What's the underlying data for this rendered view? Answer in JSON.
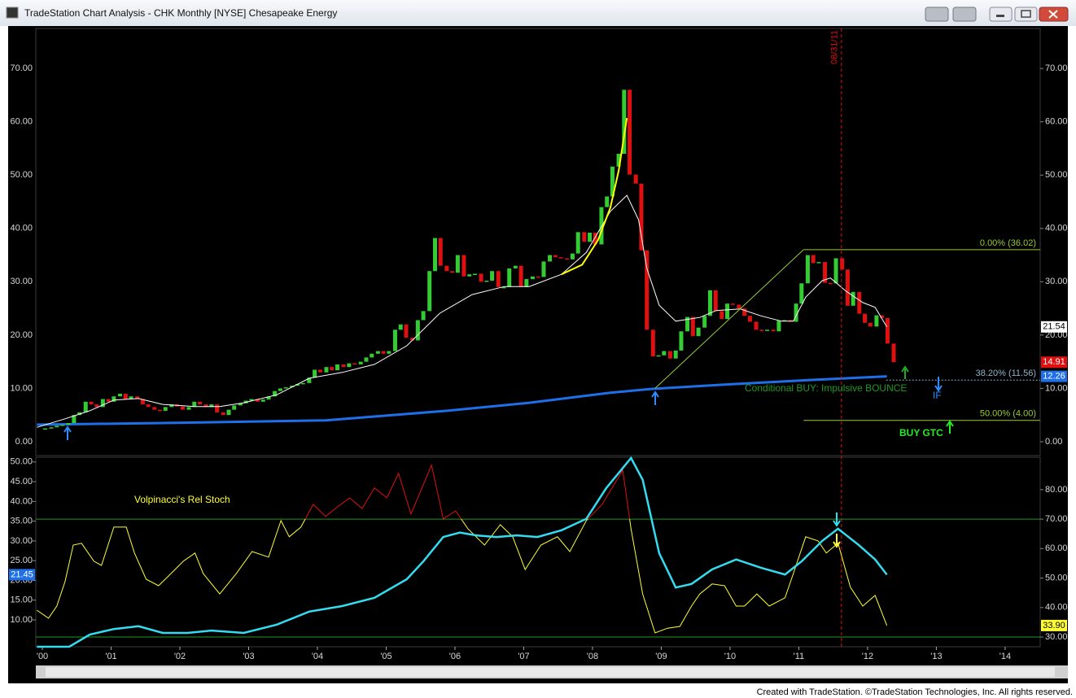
{
  "window": {
    "title": "TradeStation Chart Analysis - CHK Monthly [NYSE] Chesapeake Energy",
    "footer": "Created with TradeStation. ©TradeStation Technologies, Inc. All rights reserved."
  },
  "chart_data": [
    {
      "type": "candlestick",
      "up_color": "#33cc33",
      "down_color": "#e01010",
      "xlim": [
        1999.905,
        2014.51
      ],
      "ylim": [
        -2.6,
        77.5
      ],
      "yticks": [
        {
          "value": 0,
          "label": "0.00"
        },
        {
          "value": 10,
          "label": "10.00"
        },
        {
          "value": 20,
          "label": "20.00"
        },
        {
          "value": 30,
          "label": "30.00"
        },
        {
          "value": 40,
          "label": "40.00"
        },
        {
          "value": 50,
          "label": "50.00"
        },
        {
          "value": 60,
          "label": "60.00"
        },
        {
          "value": 70,
          "label": "70.00"
        }
      ],
      "x": [
        2000.04,
        2000.13,
        2000.21,
        2000.29,
        2000.38,
        2000.46,
        2000.54,
        2000.63,
        2000.71,
        2000.79,
        2000.88,
        2000.96,
        2001.04,
        2001.13,
        2001.21,
        2001.29,
        2001.38,
        2001.46,
        2001.54,
        2001.63,
        2001.71,
        2001.79,
        2001.88,
        2001.96,
        2002.04,
        2002.13,
        2002.21,
        2002.29,
        2002.38,
        2002.46,
        2002.54,
        2002.63,
        2002.71,
        2002.79,
        2002.88,
        2002.96,
        2003.04,
        2003.13,
        2003.21,
        2003.29,
        2003.38,
        2003.46,
        2003.54,
        2003.63,
        2003.71,
        2003.79,
        2003.88,
        2003.96,
        2004.04,
        2004.13,
        2004.21,
        2004.29,
        2004.38,
        2004.46,
        2004.54,
        2004.63,
        2004.71,
        2004.79,
        2004.88,
        2004.96,
        2005.04,
        2005.13,
        2005.21,
        2005.29,
        2005.38,
        2005.46,
        2005.54,
        2005.63,
        2005.71,
        2005.79,
        2005.88,
        2005.96,
        2006.04,
        2006.13,
        2006.21,
        2006.29,
        2006.38,
        2006.46,
        2006.54,
        2006.63,
        2006.71,
        2006.79,
        2006.88,
        2006.96,
        2007.04,
        2007.13,
        2007.21,
        2007.29,
        2007.38,
        2007.46,
        2007.54,
        2007.63,
        2007.71,
        2007.79,
        2007.88,
        2007.96,
        2008.04,
        2008.13,
        2008.21,
        2008.29,
        2008.38,
        2008.46,
        2008.54,
        2008.63,
        2008.71,
        2008.79,
        2008.88,
        2008.96,
        2009.04,
        2009.13,
        2009.21,
        2009.29,
        2009.38,
        2009.46,
        2009.54,
        2009.63,
        2009.71,
        2009.79,
        2009.88,
        2009.96,
        2010.04,
        2010.13,
        2010.21,
        2010.29,
        2010.38,
        2010.46,
        2010.54,
        2010.63,
        2010.71,
        2010.79,
        2010.88,
        2010.96,
        2011.04,
        2011.13,
        2011.21,
        2011.29,
        2011.38,
        2011.46,
        2011.54,
        2011.63,
        2011.71,
        2011.79,
        2011.88,
        2011.96,
        2012.04,
        2012.13,
        2012.21,
        2012.29,
        2012.38
      ],
      "close": [
        2.5,
        2.7,
        3.0,
        3.2,
        3.5,
        5.0,
        5.5,
        7.5,
        7.0,
        6.5,
        8.0,
        7.5,
        8.5,
        9.0,
        8.0,
        8.5,
        8.0,
        7.0,
        6.5,
        6.0,
        5.8,
        6.5,
        7.0,
        6.6,
        6.0,
        6.5,
        7.5,
        7.0,
        6.5,
        7.0,
        5.5,
        5.0,
        6.0,
        6.8,
        7.2,
        7.7,
        8.0,
        7.5,
        7.9,
        8.5,
        9.5,
        10.0,
        10.2,
        10.5,
        10.8,
        11.0,
        12.0,
        13.5,
        13.0,
        14.0,
        13.4,
        14.5,
        14.0,
        14.7,
        14.5,
        15.0,
        15.8,
        16.5,
        17.0,
        16.5,
        17.0,
        21.0,
        22.0,
        19.5,
        19.0,
        22.8,
        24.5,
        32.0,
        38.2,
        33.0,
        32.0,
        31.7,
        35.0,
        31.0,
        31.4,
        31.5,
        30.0,
        30.2,
        32.0,
        29.0,
        29.0,
        32.5,
        33.0,
        29.0,
        30.5,
        31.0,
        30.9,
        33.8,
        35.0,
        34.6,
        34.4,
        34.2,
        35.3,
        39.3,
        37.5,
        39.2,
        37.0,
        44.0,
        46.0,
        51.6,
        54.0,
        66.0,
        50.1,
        48.4,
        35.9,
        21.0,
        16.0,
        16.2,
        17.0,
        15.6,
        17.1,
        20.7,
        23.4,
        19.8,
        21.4,
        23.6,
        28.4,
        24.5,
        23.0,
        25.9,
        25.7,
        25.0,
        23.6,
        22.5,
        21.0,
        20.9,
        21.0,
        20.7,
        22.7,
        22.8,
        22.5,
        25.9,
        29.7,
        35.0,
        33.5,
        33.7,
        29.8,
        29.7,
        34.4,
        32.3,
        25.5,
        28.1,
        24.0,
        22.3,
        21.6,
        23.7,
        23.2,
        18.4,
        14.91
      ],
      "series": [
        {
          "color": "#ffffff",
          "width": 1,
          "x": [
            1999.92,
            2000.33,
            2000.69,
            2001.04,
            2001.4,
            2001.75,
            2002.22,
            2002.58,
            2002.93,
            2003.41,
            2003.88,
            2004.36,
            2004.83,
            2005.3,
            2005.78,
            2006.25,
            2006.72,
            2007.08,
            2007.55,
            2007.91,
            2008.26,
            2008.5,
            2008.67,
            2008.79,
            2008.97,
            2009.21,
            2009.56,
            2009.8,
            2010.15,
            2010.45,
            2010.75,
            2010.92,
            2011.1,
            2011.34,
            2011.46,
            2011.69,
            2011.93,
            2012.11,
            2012.28
          ],
          "values": [
            2.7,
            4.3,
            5.8,
            7.8,
            8.1,
            7.0,
            6.6,
            6.6,
            7.3,
            8.8,
            11.9,
            13.0,
            14.5,
            18.0,
            24.1,
            27.6,
            29.1,
            29.1,
            31.4,
            35.5,
            43.2,
            46.2,
            41.6,
            32.5,
            25.6,
            22.6,
            23.3,
            24.6,
            24.9,
            23.6,
            22.6,
            22.6,
            27.1,
            30.2,
            30.7,
            28.2,
            26.1,
            25.2,
            21.54
          ]
        },
        {
          "color": "#1e6fe8",
          "width": 3,
          "x": [
            1999.92,
            2001.75,
            2004.12,
            2005.89,
            2007.08,
            2008.26,
            2008.85,
            2010.03,
            2011.22,
            2012.28
          ],
          "values": [
            3.2,
            3.5,
            4.0,
            5.8,
            7.3,
            9.2,
            9.9,
            10.8,
            11.6,
            12.26
          ]
        },
        {
          "color": "#ffff00",
          "width": 2,
          "x": [
            2007.55,
            2007.85,
            2008.08,
            2008.26,
            2008.38,
            2008.5
          ],
          "values": [
            31.4,
            33.2,
            37.8,
            43.9,
            50.8,
            60.7
          ]
        }
      ],
      "trend_line": {
        "color": "#99cc33",
        "x": [
          2008.91,
          2011.07
        ],
        "values": [
          10,
          36.02
        ]
      },
      "fib_levels": [
        {
          "value": 36.02,
          "label": "0.00% (36.02)",
          "x": 2011.07,
          "color": "#99cc33"
        },
        {
          "value": 11.56,
          "label": "38.20% (11.56)",
          "x": 2012.27,
          "color": "#8fb3c8",
          "style": "dotted"
        },
        {
          "value": 4.0,
          "label": "50.00% (4.00)",
          "x": 2011.07,
          "color": "#99cc33"
        }
      ],
      "annotations": [
        "Conditional BUY: Impulsive BOUNCE",
        "BUY GTC",
        "IF"
      ],
      "vline": {
        "x": 2011.62,
        "label": "08/31/11",
        "color": "#e01010"
      }
    },
    {
      "type": "line",
      "title": "Volpinacci's Rel Stoch",
      "xlim": [
        1999.905,
        2014.51
      ],
      "xticks": [
        {
          "value": 2000,
          "label": "'00"
        },
        {
          "value": 2001,
          "label": "'01"
        },
        {
          "value": 2002,
          "label": "'02"
        },
        {
          "value": 2003,
          "label": "'03"
        },
        {
          "value": 2004,
          "label": "'04"
        },
        {
          "value": 2005,
          "label": "'05"
        },
        {
          "value": 2006,
          "label": "'06"
        },
        {
          "value": 2007,
          "label": "'07"
        },
        {
          "value": 2008,
          "label": "'08"
        },
        {
          "value": 2009,
          "label": "'09"
        },
        {
          "value": 2010,
          "label": "'10"
        },
        {
          "value": 2011,
          "label": "'11"
        },
        {
          "value": 2012,
          "label": "'12"
        },
        {
          "value": 2013,
          "label": "'13"
        },
        {
          "value": 2014,
          "label": "'14"
        }
      ],
      "ylim": [
        3.2,
        51.2
      ],
      "yticks": [
        {
          "value": 10,
          "label": "10.00"
        },
        {
          "value": 15,
          "label": "15.00"
        },
        {
          "value": 20,
          "label": "20.00"
        },
        {
          "value": 25,
          "label": "25.00"
        },
        {
          "value": 30,
          "label": "30.00"
        },
        {
          "value": 35,
          "label": "35.00"
        },
        {
          "value": 40,
          "label": "40.00"
        },
        {
          "value": 45,
          "label": "45.00"
        },
        {
          "value": 50,
          "label": "50.00"
        }
      ],
      "y2lim": [
        26.7,
        91.0
      ],
      "y2ticks": [
        {
          "value": 30,
          "label": "30.00"
        },
        {
          "value": 40,
          "label": "40.00"
        },
        {
          "value": 50,
          "label": "50.00"
        },
        {
          "value": 60,
          "label": "60.00"
        },
        {
          "value": 70,
          "label": "70.00"
        },
        {
          "value": 80,
          "label": "80.00"
        }
      ],
      "y2_levels": [
        70,
        30
      ],
      "level_color": "#1f9a1f",
      "overbought_color": "#e01010",
      "series": [
        {
          "color": "#ffff33",
          "width": 1,
          "axis": "y2",
          "x": [
            1999.92,
            2000.09,
            2000.21,
            2000.33,
            2000.45,
            2000.57,
            2000.75,
            2000.86,
            2001.04,
            2001.22,
            2001.34,
            2001.51,
            2001.69,
            2001.87,
            2002.05,
            2002.22,
            2002.34,
            2002.58,
            2002.82,
            2003.05,
            2003.29,
            2003.47,
            2003.59,
            2003.76,
            2003.94,
            2004.12,
            2004.3,
            2004.47,
            2004.65,
            2004.83,
            2005.01,
            2005.18,
            2005.36,
            2005.66,
            2005.83,
            2006.01,
            2006.19,
            2006.43,
            2006.66,
            2006.84,
            2007.02,
            2007.25,
            2007.49,
            2007.67,
            2007.91,
            2008.14,
            2008.44,
            2008.56,
            2008.73,
            2008.91,
            2009.09,
            2009.27,
            2009.44,
            2009.56,
            2009.74,
            2009.92,
            2010.09,
            2010.21,
            2010.39,
            2010.57,
            2010.8,
            2010.92,
            2011.1,
            2011.28,
            2011.4,
            2011.57,
            2011.75,
            2011.93,
            2012.11,
            2012.28
          ],
          "values": [
            39.1,
            36.4,
            40.5,
            48.8,
            61.2,
            61.8,
            55.7,
            54.3,
            67.3,
            67.3,
            58.5,
            49.6,
            47.4,
            51.5,
            55.7,
            58.5,
            51.5,
            44.6,
            51.5,
            59.0,
            57.1,
            69.5,
            64.0,
            67.3,
            75.0,
            70.9,
            74.3,
            77.2,
            73.6,
            80.6,
            77.2,
            85.5,
            71.7,
            88.3,
            70.1,
            72.8,
            66.7,
            61.2,
            68.1,
            64.0,
            52.9,
            61.2,
            64.0,
            59.0,
            69.5,
            75.0,
            86.6,
            66.7,
            44.6,
            31.4,
            33.0,
            33.6,
            40.5,
            44.6,
            48.0,
            47.4,
            40.5,
            40.5,
            44.6,
            40.5,
            43.3,
            51.5,
            64.0,
            62.6,
            58.5,
            61.8,
            46.9,
            40.5,
            44.1,
            33.9
          ],
          "value_labels": [
            null,
            null,
            null,
            null,
            null,
            null,
            null,
            null,
            null,
            null,
            null,
            null,
            null,
            null,
            null,
            null,
            null,
            null,
            null,
            null,
            null,
            null,
            null,
            null,
            null,
            null,
            null,
            null,
            null,
            null,
            null,
            null,
            null,
            null,
            null,
            null,
            null,
            null,
            null,
            null,
            null,
            null,
            null,
            null,
            null,
            null,
            null,
            null,
            null,
            null,
            null,
            null,
            null,
            null,
            null,
            null,
            null,
            null,
            null,
            null,
            null,
            null,
            null,
            null,
            null,
            null,
            null,
            null,
            null,
            "33.90"
          ]
        },
        {
          "color": "#33dcf0",
          "width": 2.5,
          "x": [
            1999.92,
            2000.39,
            2000.69,
            2001.04,
            2001.4,
            2001.75,
            2002.11,
            2002.46,
            2002.93,
            2003.41,
            2003.88,
            2004.36,
            2004.83,
            2005.3,
            2005.54,
            2005.83,
            2006.07,
            2006.31,
            2006.6,
            2006.9,
            2007.2,
            2007.55,
            2007.91,
            2008.2,
            2008.56,
            2008.73,
            2008.97,
            2009.21,
            2009.44,
            2009.74,
            2010.09,
            2010.45,
            2010.8,
            2011.04,
            2011.34,
            2011.57,
            2011.87,
            2012.11,
            2012.28
          ],
          "values": [
            3.2,
            3.2,
            6.3,
            7.7,
            8.4,
            6.7,
            6.7,
            7.3,
            6.7,
            8.8,
            12.1,
            13.5,
            15.6,
            20.3,
            24.8,
            31.0,
            32.1,
            31.4,
            31.0,
            31.4,
            31.0,
            32.7,
            35.6,
            43.4,
            51,
            45.5,
            26.9,
            18.2,
            19.1,
            22.8,
            25.3,
            23.2,
            21.5,
            24.8,
            30.0,
            33.1,
            29.0,
            25.3,
            21.45
          ]
        }
      ]
    }
  ]
}
